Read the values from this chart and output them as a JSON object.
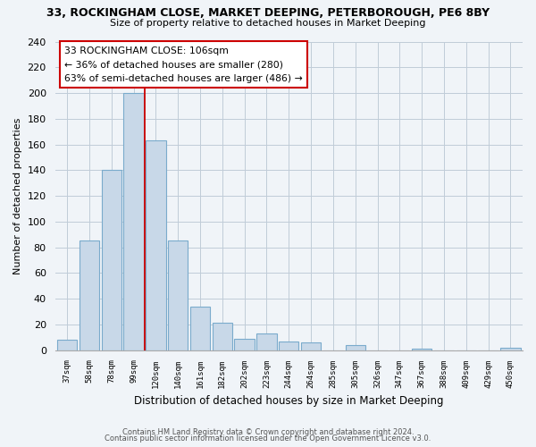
{
  "title": "33, ROCKINGHAM CLOSE, MARKET DEEPING, PETERBOROUGH, PE6 8BY",
  "subtitle": "Size of property relative to detached houses in Market Deeping",
  "xlabel": "Distribution of detached houses by size in Market Deeping",
  "ylabel": "Number of detached properties",
  "bar_labels": [
    "37sqm",
    "58sqm",
    "78sqm",
    "99sqm",
    "120sqm",
    "140sqm",
    "161sqm",
    "182sqm",
    "202sqm",
    "223sqm",
    "244sqm",
    "264sqm",
    "285sqm",
    "305sqm",
    "326sqm",
    "347sqm",
    "367sqm",
    "388sqm",
    "409sqm",
    "429sqm",
    "450sqm"
  ],
  "bar_values": [
    8,
    85,
    140,
    200,
    163,
    85,
    34,
    21,
    9,
    13,
    7,
    6,
    0,
    4,
    0,
    0,
    1,
    0,
    0,
    0,
    2
  ],
  "bar_color": "#c8d8e8",
  "bar_edge_color": "#7aabcc",
  "vline_x_index": 3.5,
  "vline_color": "#cc0000",
  "ylim": [
    0,
    240
  ],
  "yticks": [
    0,
    20,
    40,
    60,
    80,
    100,
    120,
    140,
    160,
    180,
    200,
    220,
    240
  ],
  "annotation_line1": "33 ROCKINGHAM CLOSE: 106sqm",
  "annotation_line2": "← 36% of detached houses are smaller (280)",
  "annotation_line3": "63% of semi-detached houses are larger (486) →",
  "footer_line1": "Contains HM Land Registry data © Crown copyright and database right 2024.",
  "footer_line2": "Contains public sector information licensed under the Open Government Licence v3.0.",
  "background_color": "#f0f4f8",
  "plot_bg_color": "#f0f4f8",
  "grid_color": "#c0ccd8"
}
